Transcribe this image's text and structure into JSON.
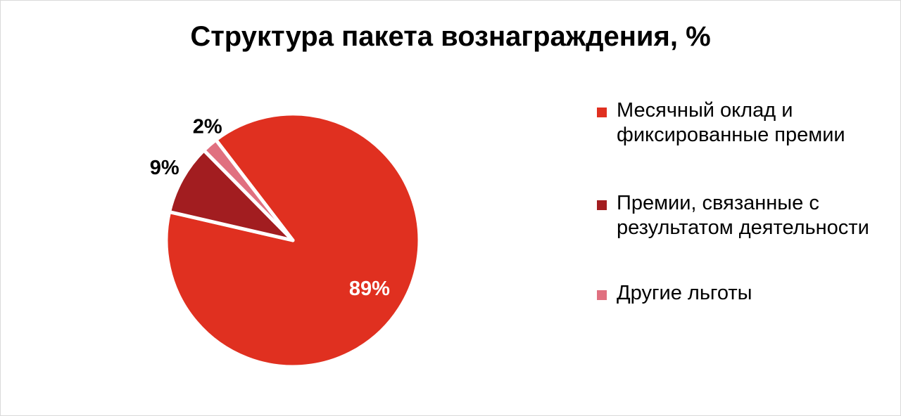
{
  "chart_data": {
    "type": "pie",
    "title": "Структура пакета вознаграждения, %",
    "categories": [
      "Месячный оклад и фиксированные премии",
      "Премии, связанные с результатом деятельности",
      "Другие льготы"
    ],
    "values": [
      89,
      9,
      2
    ],
    "data_labels": [
      "89%",
      "9%",
      "2%"
    ],
    "colors": [
      "#e03020",
      "#a21d20",
      "#e07080"
    ],
    "label_colors": [
      "#ffffff",
      "#000000",
      "#000000"
    ],
    "legend_position": "right"
  }
}
